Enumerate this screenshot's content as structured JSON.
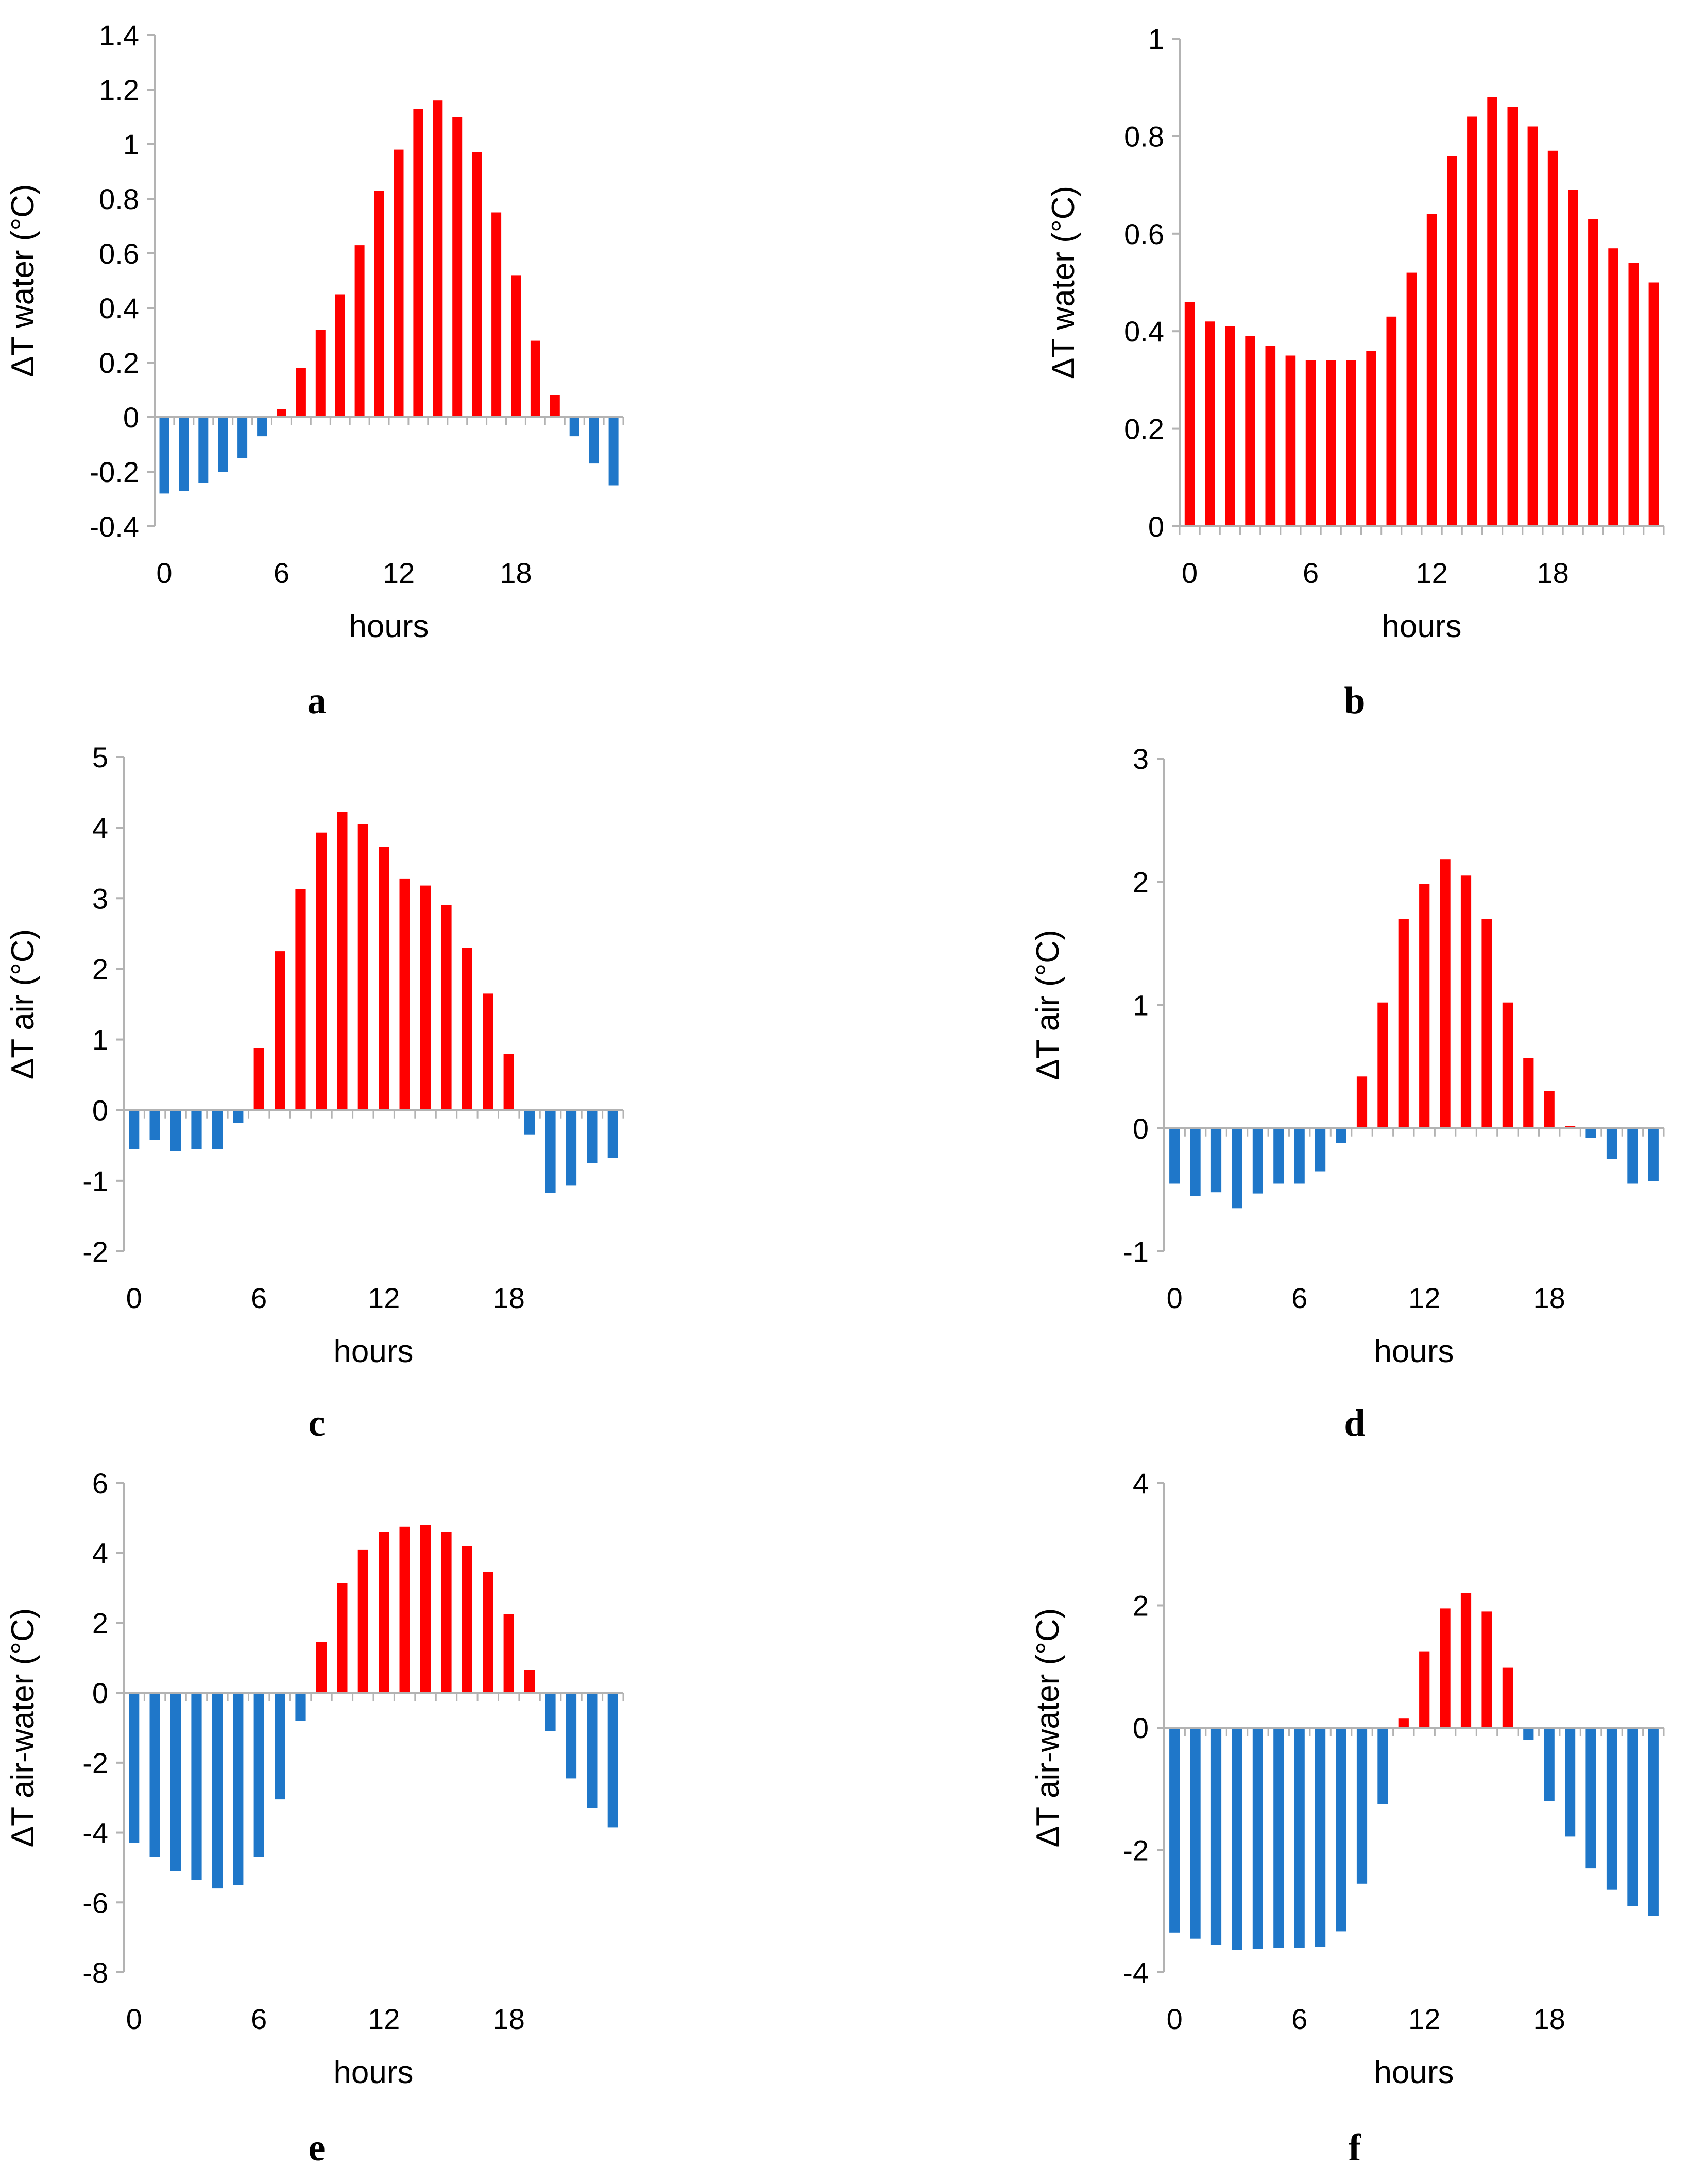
{
  "colors": {
    "positive": "#ff0000",
    "negative": "#1f77c9",
    "axis": "#b3b3b3"
  },
  "chart_data": [
    {
      "panel": "a",
      "type": "bar",
      "title": "",
      "xlabel": "hours",
      "ylabel": "ΔT water (°C)",
      "ylim": [
        -0.4,
        1.4
      ],
      "yticks": [
        "-0.4",
        "-0.2",
        "0",
        "0.2",
        "0.4",
        "0.6",
        "0.8",
        "1",
        "1.2",
        "1.4"
      ],
      "xticks": [
        "0",
        "6",
        "12",
        "18"
      ],
      "x": [
        0,
        1,
        2,
        3,
        4,
        5,
        6,
        7,
        8,
        9,
        10,
        11,
        12,
        13,
        14,
        15,
        16,
        17,
        18,
        19,
        20,
        21,
        22,
        23
      ],
      "values": [
        -0.28,
        -0.27,
        -0.24,
        -0.2,
        -0.15,
        -0.07,
        0.03,
        0.18,
        0.32,
        0.45,
        0.63,
        0.83,
        0.98,
        1.13,
        1.16,
        1.1,
        0.97,
        0.75,
        0.52,
        0.28,
        0.08,
        -0.07,
        -0.17,
        -0.25
      ]
    },
    {
      "panel": "b",
      "type": "bar",
      "title": "",
      "xlabel": "hours",
      "ylabel": "ΔT water (°C)",
      "ylim": [
        0,
        1
      ],
      "yticks": [
        "0",
        "0.2",
        "0.4",
        "0.6",
        "0.8",
        "1"
      ],
      "xticks": [
        "0",
        "6",
        "12",
        "18"
      ],
      "x": [
        0,
        1,
        2,
        3,
        4,
        5,
        6,
        7,
        8,
        9,
        10,
        11,
        12,
        13,
        14,
        15,
        16,
        17,
        18,
        19,
        20,
        21,
        22,
        23
      ],
      "values": [
        0.46,
        0.42,
        0.41,
        0.39,
        0.37,
        0.35,
        0.34,
        0.34,
        0.34,
        0.36,
        0.43,
        0.52,
        0.64,
        0.76,
        0.84,
        0.88,
        0.86,
        0.82,
        0.77,
        0.69,
        0.63,
        0.57,
        0.54,
        0.5
      ]
    },
    {
      "panel": "c",
      "type": "bar",
      "title": "",
      "xlabel": "hours",
      "ylabel": "ΔT air (°C)",
      "ylim": [
        -2,
        5
      ],
      "yticks": [
        "-2",
        "-1",
        "0",
        "1",
        "2",
        "3",
        "4",
        "5"
      ],
      "xticks": [
        "0",
        "6",
        "12",
        "18"
      ],
      "x": [
        0,
        1,
        2,
        3,
        4,
        5,
        6,
        7,
        8,
        9,
        10,
        11,
        12,
        13,
        14,
        15,
        16,
        17,
        18,
        19,
        20,
        21,
        22,
        23
      ],
      "values": [
        -0.55,
        -0.42,
        -0.58,
        -0.55,
        -0.55,
        -0.18,
        0.88,
        2.25,
        3.13,
        3.93,
        4.22,
        4.05,
        3.73,
        3.28,
        3.18,
        2.9,
        2.3,
        1.65,
        0.8,
        -0.35,
        -1.17,
        -1.07,
        -0.75,
        -0.68
      ]
    },
    {
      "panel": "d",
      "type": "bar",
      "title": "",
      "xlabel": "hours",
      "ylabel": "ΔT air (°C)",
      "ylim": [
        -1,
        3
      ],
      "yticks": [
        "-1",
        "0",
        "1",
        "2",
        "3"
      ],
      "xticks": [
        "0",
        "6",
        "12",
        "18"
      ],
      "x": [
        0,
        1,
        2,
        3,
        4,
        5,
        6,
        7,
        8,
        9,
        10,
        11,
        12,
        13,
        14,
        15,
        16,
        17,
        18,
        19,
        20,
        21,
        22,
        23
      ],
      "values": [
        -0.45,
        -0.55,
        -0.52,
        -0.65,
        -0.53,
        -0.45,
        -0.45,
        -0.35,
        -0.12,
        0.42,
        1.02,
        1.7,
        1.98,
        2.18,
        2.05,
        1.7,
        1.02,
        0.57,
        0.3,
        0.02,
        -0.08,
        -0.25,
        -0.45,
        -0.43
      ]
    },
    {
      "panel": "e",
      "type": "bar",
      "title": "",
      "xlabel": "hours",
      "ylabel": "ΔT air-water (°C)",
      "ylim": [
        -8,
        6
      ],
      "yticks": [
        "-8",
        "-6",
        "-4",
        "-2",
        "0",
        "2",
        "4",
        "6"
      ],
      "xticks": [
        "0",
        "6",
        "12",
        "18"
      ],
      "x": [
        0,
        1,
        2,
        3,
        4,
        5,
        6,
        7,
        8,
        9,
        10,
        11,
        12,
        13,
        14,
        15,
        16,
        17,
        18,
        19,
        20,
        21,
        22,
        23
      ],
      "values": [
        -4.3,
        -4.7,
        -5.1,
        -5.35,
        -5.6,
        -5.5,
        -4.7,
        -3.05,
        -0.8,
        1.45,
        3.15,
        4.1,
        4.6,
        4.75,
        4.8,
        4.6,
        4.2,
        3.45,
        2.25,
        0.65,
        -1.1,
        -2.45,
        -3.3,
        -3.85
      ]
    },
    {
      "panel": "f",
      "type": "bar",
      "title": "",
      "xlabel": "hours",
      "ylabel": "ΔT air-water (°C)",
      "ylim": [
        -4,
        4
      ],
      "yticks": [
        "-4",
        "-2",
        "0",
        "2",
        "4"
      ],
      "xticks": [
        "0",
        "6",
        "12",
        "18"
      ],
      "x": [
        0,
        1,
        2,
        3,
        4,
        5,
        6,
        7,
        8,
        9,
        10,
        11,
        12,
        13,
        14,
        15,
        16,
        17,
        18,
        19,
        20,
        21,
        22,
        23
      ],
      "values": [
        -3.35,
        -3.45,
        -3.55,
        -3.63,
        -3.62,
        -3.6,
        -3.6,
        -3.58,
        -3.33,
        -2.55,
        -1.25,
        0.15,
        1.25,
        1.95,
        2.2,
        1.9,
        0.98,
        -0.2,
        -1.2,
        -1.78,
        -2.3,
        -2.65,
        -2.92,
        -3.08
      ]
    }
  ]
}
